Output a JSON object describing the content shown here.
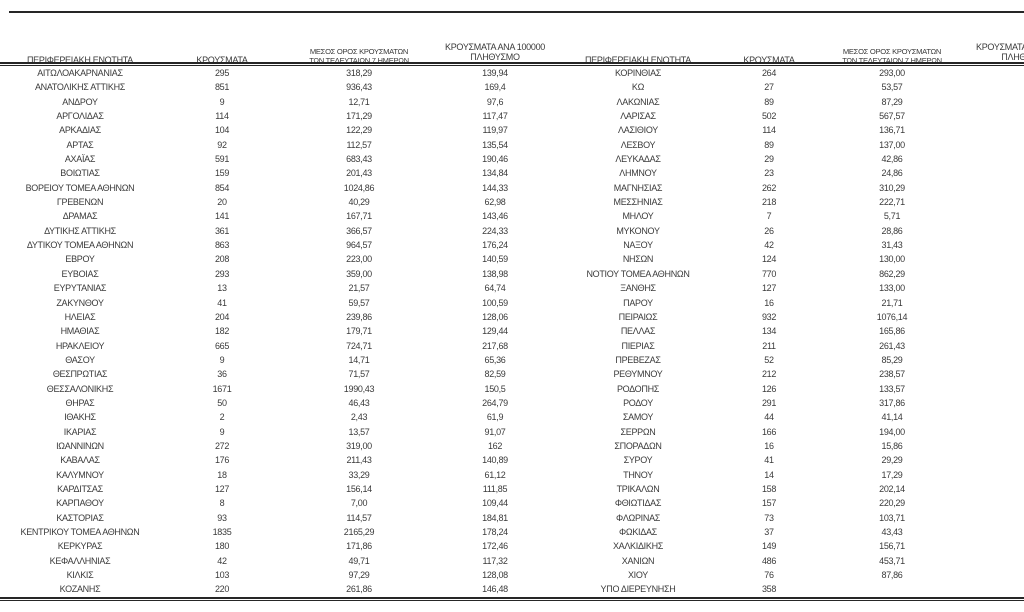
{
  "table": {
    "headers": {
      "region": "ΠΕΡΙΦΕΡΕΙΑΚΗ ΕΝΟΤΗΤΑ",
      "cases": "ΚΡΟΥΣΜΑΤΑ",
      "avg7_l1": "ΜΕΣΟΣ ΟΡΟΣ ΚΡΟΥΣΜΑΤΩΝ",
      "avg7_l2": "ΤΩΝ ΤΕΛΕΥΤΑΙΩΝ 7 ΗΜΕΡΩΝ",
      "per100k_l1": "ΚΡΟΥΣΜΑΤΑ ΑΝΑ 100000",
      "per100k_l2": "ΠΛΗΘΥΣΜΟ"
    },
    "left_rows": [
      [
        "ΑΙΤΩΛΟΑΚΑΡΝΑΝΙΑΣ",
        "295",
        "318,29",
        "139,94"
      ],
      [
        "ΑΝΑΤΟΛΙΚΗΣ ΑΤΤΙΚΗΣ",
        "851",
        "936,43",
        "169,4"
      ],
      [
        "ΑΝΔΡΟΥ",
        "9",
        "12,71",
        "97,6"
      ],
      [
        "ΑΡΓΟΛΙΔΑΣ",
        "114",
        "171,29",
        "117,47"
      ],
      [
        "ΑΡΚΑΔΙΑΣ",
        "104",
        "122,29",
        "119,97"
      ],
      [
        "ΑΡΤΑΣ",
        "92",
        "112,57",
        "135,54"
      ],
      [
        "ΑΧΑΪΑΣ",
        "591",
        "683,43",
        "190,46"
      ],
      [
        "ΒΟΙΩΤΙΑΣ",
        "159",
        "201,43",
        "134,84"
      ],
      [
        "ΒΟΡΕΙΟΥ ΤΟΜΕΑ ΑΘΗΝΩΝ",
        "854",
        "1024,86",
        "144,33"
      ],
      [
        "ΓΡΕΒΕΝΩΝ",
        "20",
        "40,29",
        "62,98"
      ],
      [
        "ΔΡΑΜΑΣ",
        "141",
        "167,71",
        "143,46"
      ],
      [
        "ΔΥΤΙΚΗΣ ΑΤΤΙΚΗΣ",
        "361",
        "366,57",
        "224,33"
      ],
      [
        "ΔΥΤΙΚΟΥ ΤΟΜΕΑ ΑΘΗΝΩΝ",
        "863",
        "964,57",
        "176,24"
      ],
      [
        "ΕΒΡΟΥ",
        "208",
        "223,00",
        "140,59"
      ],
      [
        "ΕΥΒΟΙΑΣ",
        "293",
        "359,00",
        "138,98"
      ],
      [
        "ΕΥΡΥΤΑΝΙΑΣ",
        "13",
        "21,57",
        "64,74"
      ],
      [
        "ΖΑΚΥΝΘΟΥ",
        "41",
        "59,57",
        "100,59"
      ],
      [
        "ΗΛΕΙΑΣ",
        "204",
        "239,86",
        "128,06"
      ],
      [
        "ΗΜΑΘΙΑΣ",
        "182",
        "179,71",
        "129,44"
      ],
      [
        "ΗΡΑΚΛΕΙΟΥ",
        "665",
        "724,71",
        "217,68"
      ],
      [
        "ΘΑΣΟΥ",
        "9",
        "14,71",
        "65,36"
      ],
      [
        "ΘΕΣΠΡΩΤΙΑΣ",
        "36",
        "71,57",
        "82,59"
      ],
      [
        "ΘΕΣΣΑΛΟΝΙΚΗΣ",
        "1671",
        "1990,43",
        "150,5"
      ],
      [
        "ΘΗΡΑΣ",
        "50",
        "46,43",
        "264,79"
      ],
      [
        "ΙΘΑΚΗΣ",
        "2",
        "2,43",
        "61,9"
      ],
      [
        "ΙΚΑΡΙΑΣ",
        "9",
        "13,57",
        "91,07"
      ],
      [
        "ΙΩΑΝΝΙΝΩΝ",
        "272",
        "319,00",
        "162"
      ],
      [
        "ΚΑΒΑΛΑΣ",
        "176",
        "211,43",
        "140,89"
      ],
      [
        "ΚΑΛΥΜΝΟΥ",
        "18",
        "33,29",
        "61,12"
      ],
      [
        "ΚΑΡΔΙΤΣΑΣ",
        "127",
        "156,14",
        "111,85"
      ],
      [
        "ΚΑΡΠΑΘΟΥ",
        "8",
        "7,00",
        "109,44"
      ],
      [
        "ΚΑΣΤΟΡΙΑΣ",
        "93",
        "114,57",
        "184,81"
      ],
      [
        "ΚΕΝΤΡΙΚΟΥ ΤΟΜΕΑ ΑΘΗΝΩΝ",
        "1835",
        "2165,29",
        "178,24"
      ],
      [
        "ΚΕΡΚΥΡΑΣ",
        "180",
        "171,86",
        "172,46"
      ],
      [
        "ΚΕΦΑΛΛΗΝΙΑΣ",
        "42",
        "49,71",
        "117,32"
      ],
      [
        "ΚΙΛΚΙΣ",
        "103",
        "97,29",
        "128,08"
      ],
      [
        "ΚΟΖΑΝΗΣ",
        "220",
        "261,86",
        "146,48"
      ]
    ],
    "right_rows": [
      [
        "ΚΟΡΙΝΘΙΑΣ",
        "264",
        "293,00",
        ""
      ],
      [
        "ΚΩ",
        "27",
        "53,57",
        ""
      ],
      [
        "ΛΑΚΩΝΙΑΣ",
        "89",
        "87,29",
        ""
      ],
      [
        "ΛΑΡΙΣΑΣ",
        "502",
        "567,57",
        ""
      ],
      [
        "ΛΑΣΙΘΙΟΥ",
        "114",
        "136,71",
        ""
      ],
      [
        "ΛΕΣΒΟΥ",
        "89",
        "137,00",
        ""
      ],
      [
        "ΛΕΥΚΑΔΑΣ",
        "29",
        "42,86",
        ""
      ],
      [
        "ΛΗΜΝΟΥ",
        "23",
        "24,86",
        ""
      ],
      [
        "ΜΑΓΝΗΣΙΑΣ",
        "262",
        "310,29",
        ""
      ],
      [
        "ΜΕΣΣΗΝΙΑΣ",
        "218",
        "222,71",
        ""
      ],
      [
        "ΜΗΛΟΥ",
        "7",
        "5,71",
        ""
      ],
      [
        "ΜΥΚΟΝΟΥ",
        "26",
        "28,86",
        ""
      ],
      [
        "ΝΑΞΟΥ",
        "42",
        "31,43",
        ""
      ],
      [
        "ΝΗΣΩΝ",
        "124",
        "130,00",
        ""
      ],
      [
        "ΝΟΤΙΟΥ ΤΟΜΕΑ ΑΘΗΝΩΝ",
        "770",
        "862,29",
        ""
      ],
      [
        "ΞΑΝΘΗΣ",
        "127",
        "133,00",
        ""
      ],
      [
        "ΠΑΡΟΥ",
        "16",
        "21,71",
        ""
      ],
      [
        "ΠΕΙΡΑΙΩΣ",
        "932",
        "1076,14",
        ""
      ],
      [
        "ΠΕΛΛΑΣ",
        "134",
        "165,86",
        ""
      ],
      [
        "ΠΙΕΡΙΑΣ",
        "211",
        "261,43",
        ""
      ],
      [
        "ΠΡΕΒΕΖΑΣ",
        "52",
        "85,29",
        ""
      ],
      [
        "ΡΕΘΥΜΝΟΥ",
        "212",
        "238,57",
        ""
      ],
      [
        "ΡΟΔΟΠΗΣ",
        "126",
        "133,57",
        ""
      ],
      [
        "ΡΟΔΟΥ",
        "291",
        "317,86",
        ""
      ],
      [
        "ΣΑΜΟΥ",
        "44",
        "41,14",
        ""
      ],
      [
        "ΣΕΡΡΩΝ",
        "166",
        "194,00",
        ""
      ],
      [
        "ΣΠΟΡΑΔΩΝ",
        "16",
        "15,86",
        ""
      ],
      [
        "ΣΥΡΟΥ",
        "41",
        "29,29",
        ""
      ],
      [
        "ΤΗΝΟΥ",
        "14",
        "17,29",
        ""
      ],
      [
        "ΤΡΙΚΑΛΩΝ",
        "158",
        "202,14",
        ""
      ],
      [
        "ΦΘΙΩΤΙΔΑΣ",
        "157",
        "220,29",
        ""
      ],
      [
        "ΦΛΩΡΙΝΑΣ",
        "73",
        "103,71",
        ""
      ],
      [
        "ΦΩΚΙΔΑΣ",
        "37",
        "43,43",
        ""
      ],
      [
        "ΧΑΛΚΙΔΙΚΗΣ",
        "149",
        "156,71",
        ""
      ],
      [
        "ΧΑΝΙΩΝ",
        "486",
        "453,71",
        ""
      ],
      [
        "ΧΙΟΥ",
        "76",
        "87,86",
        ""
      ],
      [
        "ΥΠΟ ΔΙΕΡΕΥΝΗΣΗ",
        "358",
        "",
        ""
      ]
    ]
  }
}
